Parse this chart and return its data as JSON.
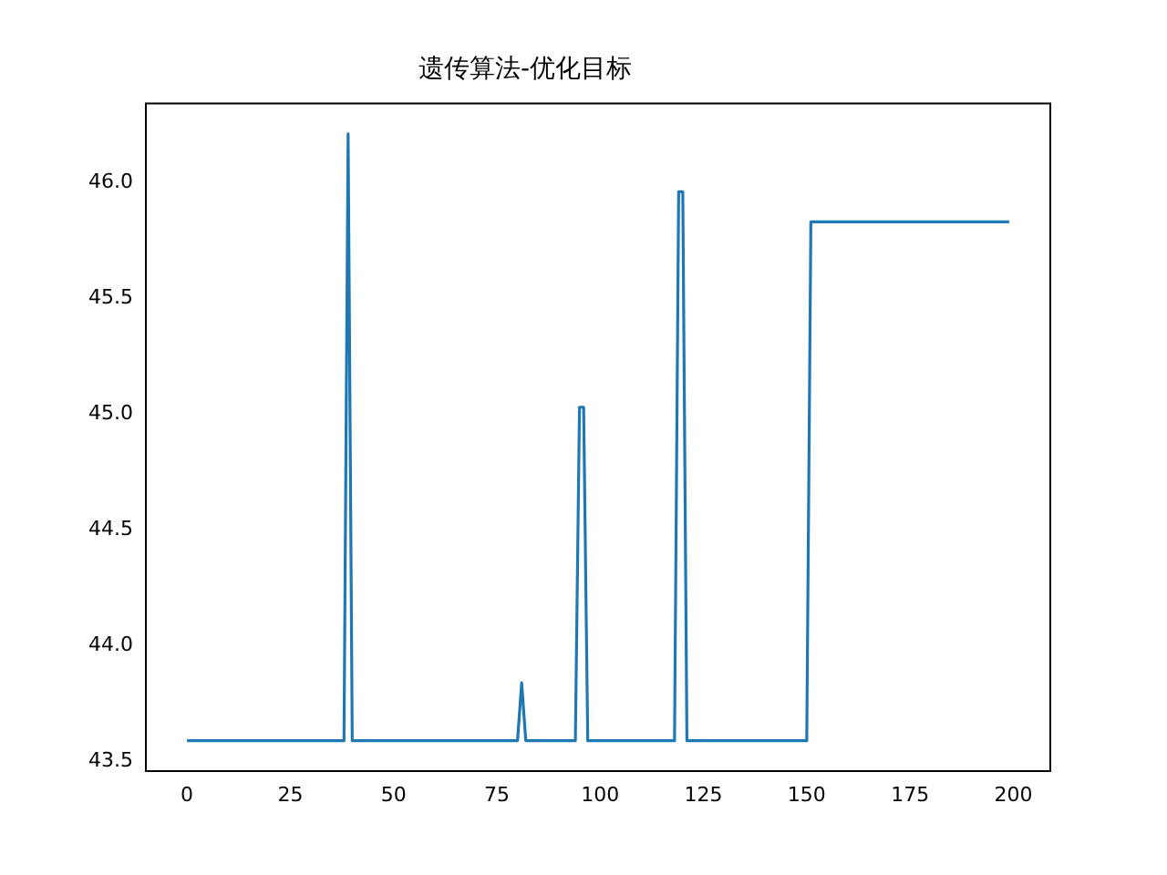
{
  "chart_data": {
    "type": "line",
    "title": "遗传算法-优化目标",
    "x": [
      0,
      38,
      39,
      40,
      80,
      81,
      82,
      94,
      95,
      96,
      97,
      118,
      119,
      120,
      121,
      150,
      151,
      199
    ],
    "series": [
      {
        "color": "#1f77b4",
        "values": [
          43.59,
          43.59,
          46.21,
          43.59,
          43.59,
          43.84,
          43.59,
          43.59,
          45.03,
          45.03,
          43.59,
          43.59,
          45.96,
          45.96,
          43.59,
          43.59,
          45.83,
          45.83
        ]
      }
    ],
    "xlim": [
      -9.95,
      208.95
    ],
    "xticks": [
      0,
      25,
      50,
      75,
      100,
      125,
      150,
      175,
      200
    ],
    "ylim": [
      43.459,
      46.341
    ],
    "yticks": [
      {
        "value": 43.5,
        "label": "43.5"
      },
      {
        "value": 44,
        "label": "44.0"
      },
      {
        "value": 44.5,
        "label": "44.5"
      },
      {
        "value": 45,
        "label": "45.0"
      },
      {
        "value": 45.5,
        "label": "45.5"
      },
      {
        "value": 46,
        "label": "46.0"
      }
    ],
    "grid": false,
    "legend": false,
    "marker": "none",
    "line_style": "solid"
  }
}
